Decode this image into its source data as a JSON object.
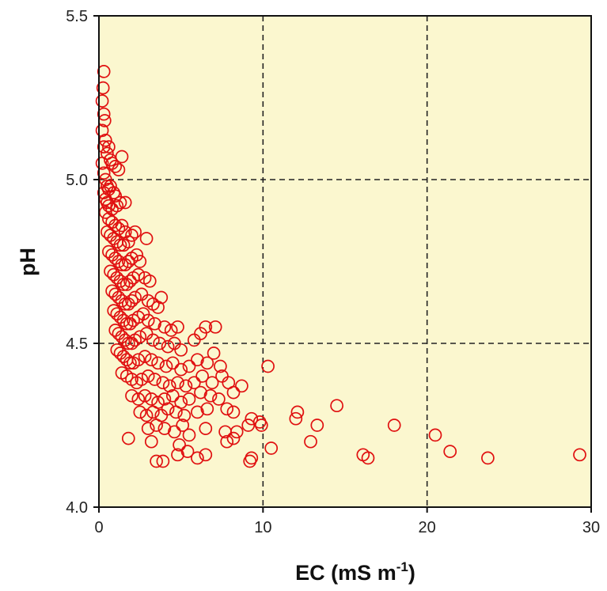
{
  "chart_data": {
    "type": "scatter",
    "xlabel": "EC (mS m",
    "xlabel_sup": "-1",
    "xlabel_close": ")",
    "ylabel": "pH",
    "xlim": [
      0,
      30
    ],
    "ylim": [
      4.0,
      5.5
    ],
    "xticks": [
      "0",
      "10",
      "20",
      "30"
    ],
    "yticks": [
      "4.0",
      "4.5",
      "5.0",
      "5.5"
    ],
    "grid": "dashed at x=10, 20 and y=4.5, 5.0",
    "colors": {
      "plot_background": "#fbf7cf",
      "marker": "#e01010",
      "grid": "#222222"
    },
    "series": [
      {
        "marker": "open-circle",
        "points": [
          [
            0.3,
            5.33
          ],
          [
            0.25,
            5.28
          ],
          [
            0.2,
            5.24
          ],
          [
            0.3,
            5.2
          ],
          [
            0.35,
            5.18
          ],
          [
            0.2,
            5.15
          ],
          [
            0.4,
            5.12
          ],
          [
            0.3,
            5.1
          ],
          [
            0.5,
            5.08
          ],
          [
            0.6,
            5.1
          ],
          [
            0.7,
            5.06
          ],
          [
            0.8,
            5.05
          ],
          [
            1.0,
            5.04
          ],
          [
            1.2,
            5.03
          ],
          [
            1.4,
            5.07
          ],
          [
            0.2,
            5.05
          ],
          [
            0.3,
            5.02
          ],
          [
            0.4,
            5.0
          ],
          [
            0.5,
            4.98
          ],
          [
            0.6,
            4.97
          ],
          [
            0.7,
            4.98
          ],
          [
            0.9,
            4.96
          ],
          [
            1.0,
            4.95
          ],
          [
            0.3,
            4.96
          ],
          [
            0.4,
            4.94
          ],
          [
            0.5,
            4.93
          ],
          [
            0.6,
            4.92
          ],
          [
            0.8,
            4.91
          ],
          [
            1.1,
            4.92
          ],
          [
            1.3,
            4.93
          ],
          [
            1.6,
            4.93
          ],
          [
            0.4,
            4.9
          ],
          [
            0.6,
            4.88
          ],
          [
            0.8,
            4.87
          ],
          [
            1.0,
            4.86
          ],
          [
            1.2,
            4.85
          ],
          [
            1.4,
            4.86
          ],
          [
            1.6,
            4.84
          ],
          [
            0.5,
            4.84
          ],
          [
            0.7,
            4.83
          ],
          [
            0.9,
            4.82
          ],
          [
            1.1,
            4.81
          ],
          [
            1.3,
            4.8
          ],
          [
            1.5,
            4.8
          ],
          [
            1.8,
            4.81
          ],
          [
            2.0,
            4.83
          ],
          [
            2.2,
            4.84
          ],
          [
            2.9,
            4.82
          ],
          [
            0.6,
            4.78
          ],
          [
            0.8,
            4.77
          ],
          [
            1.0,
            4.76
          ],
          [
            1.2,
            4.75
          ],
          [
            1.4,
            4.74
          ],
          [
            1.6,
            4.74
          ],
          [
            1.8,
            4.75
          ],
          [
            2.0,
            4.76
          ],
          [
            2.3,
            4.77
          ],
          [
            2.5,
            4.75
          ],
          [
            0.7,
            4.72
          ],
          [
            0.9,
            4.71
          ],
          [
            1.1,
            4.7
          ],
          [
            1.3,
            4.69
          ],
          [
            1.5,
            4.68
          ],
          [
            1.7,
            4.68
          ],
          [
            1.9,
            4.69
          ],
          [
            2.1,
            4.7
          ],
          [
            2.4,
            4.71
          ],
          [
            2.8,
            4.7
          ],
          [
            3.1,
            4.69
          ],
          [
            0.8,
            4.66
          ],
          [
            1.0,
            4.65
          ],
          [
            1.2,
            4.64
          ],
          [
            1.4,
            4.63
          ],
          [
            1.6,
            4.62
          ],
          [
            1.8,
            4.62
          ],
          [
            2.0,
            4.63
          ],
          [
            2.2,
            4.64
          ],
          [
            2.6,
            4.65
          ],
          [
            3.0,
            4.63
          ],
          [
            3.3,
            4.62
          ],
          [
            3.6,
            4.61
          ],
          [
            3.8,
            4.64
          ],
          [
            0.9,
            4.6
          ],
          [
            1.1,
            4.59
          ],
          [
            1.3,
            4.58
          ],
          [
            1.5,
            4.57
          ],
          [
            1.7,
            4.56
          ],
          [
            1.9,
            4.56
          ],
          [
            2.1,
            4.57
          ],
          [
            2.4,
            4.58
          ],
          [
            2.7,
            4.59
          ],
          [
            3.0,
            4.57
          ],
          [
            3.4,
            4.56
          ],
          [
            4.0,
            4.55
          ],
          [
            4.4,
            4.54
          ],
          [
            4.8,
            4.55
          ],
          [
            1.0,
            4.54
          ],
          [
            1.2,
            4.53
          ],
          [
            1.4,
            4.52
          ],
          [
            1.6,
            4.51
          ],
          [
            1.8,
            4.5
          ],
          [
            2.0,
            4.5
          ],
          [
            2.2,
            4.51
          ],
          [
            2.5,
            4.52
          ],
          [
            2.9,
            4.53
          ],
          [
            3.3,
            4.51
          ],
          [
            3.7,
            4.5
          ],
          [
            4.2,
            4.49
          ],
          [
            4.6,
            4.5
          ],
          [
            5.0,
            4.48
          ],
          [
            5.8,
            4.51
          ],
          [
            6.2,
            4.53
          ],
          [
            6.5,
            4.55
          ],
          [
            7.1,
            4.55
          ],
          [
            1.1,
            4.48
          ],
          [
            1.3,
            4.47
          ],
          [
            1.5,
            4.46
          ],
          [
            1.7,
            4.45
          ],
          [
            1.9,
            4.44
          ],
          [
            2.1,
            4.44
          ],
          [
            2.4,
            4.45
          ],
          [
            2.8,
            4.46
          ],
          [
            3.2,
            4.45
          ],
          [
            3.6,
            4.44
          ],
          [
            4.1,
            4.43
          ],
          [
            4.5,
            4.44
          ],
          [
            5.0,
            4.42
          ],
          [
            5.5,
            4.43
          ],
          [
            6.0,
            4.45
          ],
          [
            6.6,
            4.44
          ],
          [
            7.0,
            4.47
          ],
          [
            7.4,
            4.43
          ],
          [
            1.4,
            4.41
          ],
          [
            1.7,
            4.4
          ],
          [
            2.0,
            4.39
          ],
          [
            2.3,
            4.38
          ],
          [
            2.6,
            4.39
          ],
          [
            3.0,
            4.4
          ],
          [
            3.4,
            4.39
          ],
          [
            3.9,
            4.38
          ],
          [
            4.3,
            4.37
          ],
          [
            4.8,
            4.38
          ],
          [
            5.3,
            4.37
          ],
          [
            5.8,
            4.38
          ],
          [
            6.3,
            4.4
          ],
          [
            6.9,
            4.38
          ],
          [
            7.5,
            4.4
          ],
          [
            7.9,
            4.38
          ],
          [
            2.0,
            4.34
          ],
          [
            2.4,
            4.33
          ],
          [
            2.8,
            4.34
          ],
          [
            3.2,
            4.33
          ],
          [
            3.6,
            4.32
          ],
          [
            4.0,
            4.33
          ],
          [
            4.5,
            4.34
          ],
          [
            5.0,
            4.32
          ],
          [
            5.5,
            4.33
          ],
          [
            6.2,
            4.35
          ],
          [
            6.8,
            4.34
          ],
          [
            7.3,
            4.33
          ],
          [
            8.2,
            4.35
          ],
          [
            8.7,
            4.37
          ],
          [
            2.5,
            4.29
          ],
          [
            2.9,
            4.28
          ],
          [
            3.3,
            4.29
          ],
          [
            3.8,
            4.28
          ],
          [
            4.2,
            4.3
          ],
          [
            4.7,
            4.29
          ],
          [
            5.2,
            4.28
          ],
          [
            6.0,
            4.29
          ],
          [
            6.6,
            4.3
          ],
          [
            7.8,
            4.3
          ],
          [
            8.2,
            4.29
          ],
          [
            9.3,
            4.27
          ],
          [
            9.8,
            4.26
          ],
          [
            3.0,
            4.24
          ],
          [
            3.5,
            4.25
          ],
          [
            4.0,
            4.24
          ],
          [
            4.6,
            4.23
          ],
          [
            5.1,
            4.25
          ],
          [
            6.5,
            4.24
          ],
          [
            7.7,
            4.23
          ],
          [
            8.4,
            4.23
          ],
          [
            9.1,
            4.25
          ],
          [
            9.9,
            4.25
          ],
          [
            1.8,
            4.21
          ],
          [
            3.2,
            4.2
          ],
          [
            5.5,
            4.22
          ],
          [
            7.8,
            4.2
          ],
          [
            8.2,
            4.21
          ],
          [
            10.3,
            4.43
          ],
          [
            12.0,
            4.27
          ],
          [
            12.1,
            4.29
          ],
          [
            13.3,
            4.25
          ],
          [
            14.5,
            4.31
          ],
          [
            12.9,
            4.2
          ],
          [
            10.5,
            4.18
          ],
          [
            4.9,
            4.19
          ],
          [
            5.4,
            4.17
          ],
          [
            4.8,
            4.16
          ],
          [
            6.0,
            4.15
          ],
          [
            6.5,
            4.16
          ],
          [
            9.3,
            4.15
          ],
          [
            9.2,
            4.14
          ],
          [
            3.5,
            4.14
          ],
          [
            3.9,
            4.14
          ],
          [
            16.1,
            4.16
          ],
          [
            16.4,
            4.15
          ],
          [
            18.0,
            4.25
          ],
          [
            20.5,
            4.22
          ],
          [
            21.4,
            4.17
          ],
          [
            23.7,
            4.15
          ],
          [
            29.3,
            4.16
          ]
        ]
      }
    ]
  }
}
